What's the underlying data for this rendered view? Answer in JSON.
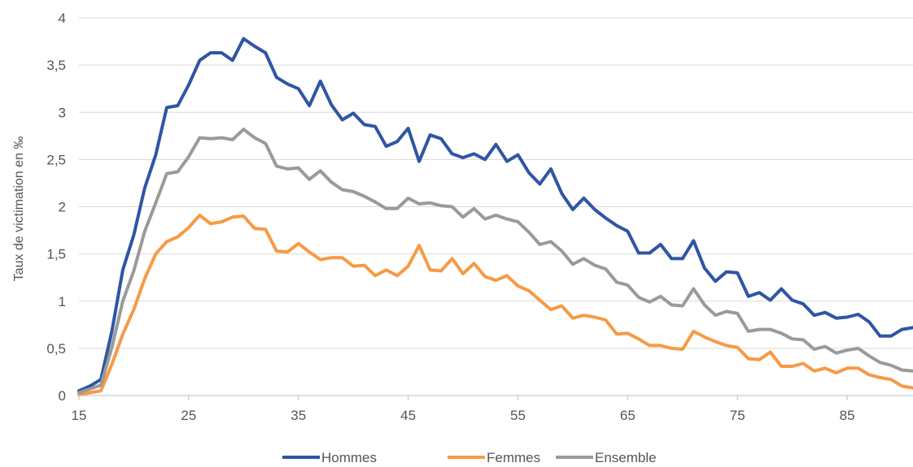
{
  "chart_data": {
    "type": "line",
    "title": "",
    "xlabel": "",
    "ylabel": "Taux de victimation en ‰",
    "xlim": [
      15,
      91
    ],
    "ylim": [
      0,
      4
    ],
    "x_ticks": [
      15,
      25,
      35,
      45,
      55,
      65,
      75,
      85
    ],
    "y_ticks": [
      0,
      0.5,
      1,
      1.5,
      2,
      2.5,
      3,
      3.5,
      4
    ],
    "y_tick_labels": [
      "0",
      "0,5",
      "1",
      "1,5",
      "2",
      "2,5",
      "3",
      "3,5",
      "4"
    ],
    "grid": "horizontal",
    "legend_position": "bottom",
    "x": [
      15,
      16,
      17,
      18,
      19,
      20,
      21,
      22,
      23,
      24,
      25,
      26,
      27,
      28,
      29,
      30,
      31,
      32,
      33,
      34,
      35,
      36,
      37,
      38,
      39,
      40,
      41,
      42,
      43,
      44,
      45,
      46,
      47,
      48,
      49,
      50,
      51,
      52,
      53,
      54,
      55,
      56,
      57,
      58,
      59,
      60,
      61,
      62,
      63,
      64,
      65,
      66,
      67,
      68,
      69,
      70,
      71,
      72,
      73,
      74,
      75,
      76,
      77,
      78,
      79,
      80,
      81,
      82,
      83,
      84,
      85,
      86,
      87,
      88,
      89,
      90,
      91
    ],
    "series": [
      {
        "name": "Hommes",
        "color": "#2f55a4",
        "values": [
          0.05,
          0.1,
          0.17,
          0.68,
          1.33,
          1.7,
          2.2,
          2.55,
          3.05,
          3.07,
          3.29,
          3.55,
          3.63,
          3.63,
          3.55,
          3.78,
          3.7,
          3.63,
          3.37,
          3.3,
          3.25,
          3.07,
          3.33,
          3.08,
          2.92,
          2.99,
          2.87,
          2.85,
          2.64,
          2.69,
          2.83,
          2.48,
          2.76,
          2.72,
          2.56,
          2.52,
          2.56,
          2.5,
          2.66,
          2.48,
          2.55,
          2.36,
          2.24,
          2.4,
          2.14,
          1.97,
          2.09,
          1.97,
          1.88,
          1.8,
          1.74,
          1.51,
          1.51,
          1.6,
          1.45,
          1.45,
          1.64,
          1.35,
          1.21,
          1.31,
          1.3,
          1.05,
          1.09,
          1.01,
          1.13,
          1.01,
          0.97,
          0.85,
          0.88,
          0.82,
          0.83,
          0.86,
          0.78,
          0.63,
          0.63,
          0.7,
          0.72
        ]
      },
      {
        "name": "Femmes",
        "color": "#f79a45",
        "values": [
          0.01,
          0.03,
          0.05,
          0.33,
          0.65,
          0.91,
          1.24,
          1.5,
          1.63,
          1.68,
          1.78,
          1.91,
          1.82,
          1.84,
          1.89,
          1.9,
          1.77,
          1.76,
          1.53,
          1.52,
          1.61,
          1.52,
          1.44,
          1.46,
          1.46,
          1.37,
          1.38,
          1.27,
          1.33,
          1.27,
          1.37,
          1.59,
          1.33,
          1.32,
          1.45,
          1.29,
          1.4,
          1.26,
          1.22,
          1.27,
          1.16,
          1.11,
          1.01,
          0.91,
          0.95,
          0.82,
          0.85,
          0.83,
          0.8,
          0.65,
          0.66,
          0.6,
          0.53,
          0.53,
          0.5,
          0.49,
          0.68,
          0.62,
          0.57,
          0.53,
          0.51,
          0.39,
          0.38,
          0.46,
          0.31,
          0.31,
          0.34,
          0.26,
          0.29,
          0.24,
          0.29,
          0.29,
          0.22,
          0.19,
          0.17,
          0.1,
          0.08
        ]
      },
      {
        "name": "Ensemble",
        "color": "#9a9a9a",
        "values": [
          0.03,
          0.07,
          0.11,
          0.51,
          1.0,
          1.32,
          1.74,
          2.04,
          2.35,
          2.37,
          2.53,
          2.73,
          2.72,
          2.73,
          2.71,
          2.82,
          2.73,
          2.67,
          2.43,
          2.4,
          2.41,
          2.29,
          2.38,
          2.26,
          2.18,
          2.16,
          2.11,
          2.05,
          1.98,
          1.98,
          2.09,
          2.03,
          2.04,
          2.01,
          2.0,
          1.89,
          1.98,
          1.87,
          1.91,
          1.87,
          1.84,
          1.73,
          1.6,
          1.63,
          1.53,
          1.39,
          1.45,
          1.38,
          1.34,
          1.2,
          1.17,
          1.04,
          0.99,
          1.05,
          0.96,
          0.95,
          1.13,
          0.96,
          0.85,
          0.89,
          0.87,
          0.68,
          0.7,
          0.7,
          0.66,
          0.6,
          0.59,
          0.49,
          0.52,
          0.45,
          0.48,
          0.5,
          0.42,
          0.35,
          0.32,
          0.27,
          0.26
        ]
      }
    ]
  }
}
